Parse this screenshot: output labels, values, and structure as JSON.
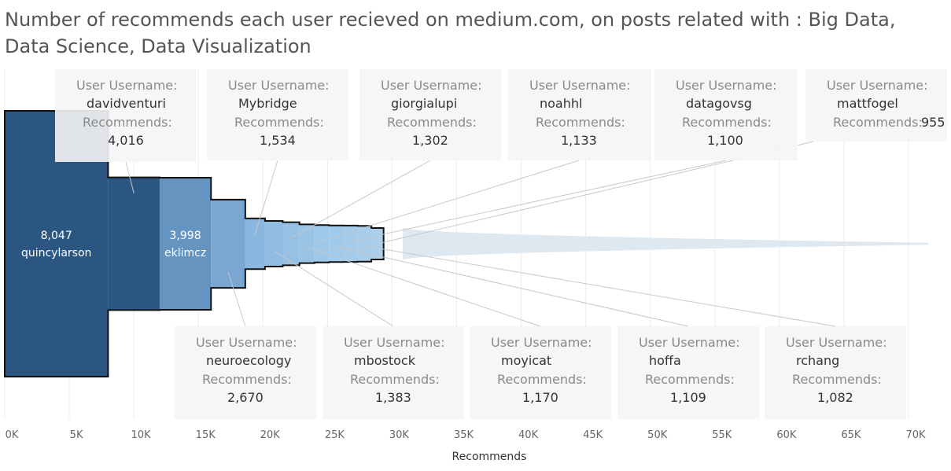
{
  "title": "Number of recommends each user recieved on medium.com, on posts related with : Big Data, Data Science, Data Visualization",
  "chart_data": {
    "type": "bar",
    "orientation": "horizontal-stacked-funnel",
    "xlabel": "Recommends",
    "xlim": [
      0,
      73000
    ],
    "x_ticks": [
      "0K",
      "5K",
      "10K",
      "15K",
      "20K",
      "25K",
      "30K",
      "35K",
      "40K",
      "45K",
      "50K",
      "55K",
      "60K",
      "65K",
      "70K"
    ],
    "grid": true,
    "tooltip_key_user": "User Username:",
    "tooltip_key_recommends": "Recommends:",
    "highlighted": [
      {
        "user": "quincylarson",
        "value": 8047,
        "display": "8,047",
        "color": "#2b5682",
        "label": "inside"
      },
      {
        "user": "davidventuri",
        "value": 4016,
        "display": "4,016",
        "color": "#2b5682",
        "label": "card-top"
      },
      {
        "user": "eklimcz",
        "value": 3998,
        "display": "3,998",
        "color": "#6694c1",
        "label": "inside"
      },
      {
        "user": "neuroecology",
        "value": 2670,
        "display": "2,670",
        "color": "#7aa7d2",
        "label": "card-bottom"
      },
      {
        "user": "Mybridge",
        "value": 1534,
        "display": "1,534",
        "color": "#8ab7e0",
        "label": "card-top"
      },
      {
        "user": "mbostock",
        "value": 1383,
        "display": "1,383",
        "color": "#91bde3",
        "label": "card-bottom"
      },
      {
        "user": "giorgialupi",
        "value": 1302,
        "display": "1,302",
        "color": "#96c1e5",
        "label": "card-top"
      },
      {
        "user": "moyicat",
        "value": 1170,
        "display": "1,170",
        "color": "#9ac4e6",
        "label": "card-bottom"
      },
      {
        "user": "noahhl",
        "value": 1133,
        "display": "1,133",
        "color": "#9ec7e8",
        "label": "card-top"
      },
      {
        "user": "hoffa",
        "value": 1109,
        "display": "1,109",
        "color": "#a1c9e9",
        "label": "card-bottom"
      },
      {
        "user": "datagovsg",
        "value": 1100,
        "display": "1,100",
        "color": "#a4cbea",
        "label": "card-top"
      },
      {
        "user": "rchang",
        "value": 1082,
        "display": "1,082",
        "color": "#a7cdea",
        "label": "card-bottom"
      },
      {
        "user": "mattfogel",
        "value": 955,
        "display": "955",
        "color": "#abcfeb",
        "label": "card-top"
      }
    ],
    "tail": {
      "from_x": 31000,
      "to_x": 71900,
      "start_value": 955,
      "end_value": 60,
      "color": "#dde8f0"
    }
  }
}
